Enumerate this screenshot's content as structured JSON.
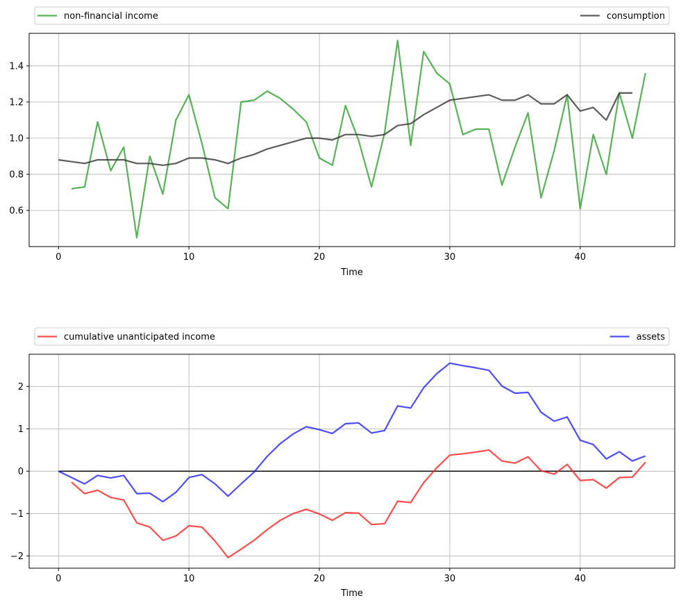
{
  "chart_data": [
    {
      "type": "line",
      "xlabel": "Time",
      "ylabel": "",
      "xlim": [
        -2.25,
        47.25
      ],
      "ylim": [
        0.4,
        1.58
      ],
      "xticks": [
        0,
        10,
        20,
        30,
        40
      ],
      "yticks": [
        0.6,
        0.8,
        1.0,
        1.2,
        1.4
      ],
      "ytick_labels": [
        "0.6",
        "0.8",
        "1.0",
        "1.2",
        "1.4"
      ],
      "grid": true,
      "legend_placement": "above plot, expanded across full width",
      "series": [
        {
          "name": "non-financial income",
          "color": "#2ca02c",
          "x_start": 1,
          "values": [
            0.72,
            0.73,
            1.09,
            0.82,
            0.95,
            0.45,
            0.9,
            0.69,
            1.1,
            1.24,
            0.97,
            0.67,
            0.61,
            1.2,
            1.21,
            1.26,
            1.22,
            1.16,
            1.09,
            0.89,
            0.85,
            1.18,
            0.99,
            0.73,
            1.03,
            1.54,
            0.96,
            1.48,
            1.36,
            1.3,
            1.02,
            1.05,
            1.05,
            0.74,
            0.95,
            1.14,
            0.67,
            0.93,
            1.24,
            0.61,
            1.02,
            0.8,
            1.25,
            1.0,
            1.36
          ]
        },
        {
          "name": "consumption",
          "color": "#333333",
          "x_start": 0,
          "values": [
            0.88,
            0.87,
            0.86,
            0.88,
            0.88,
            0.88,
            0.86,
            0.86,
            0.85,
            0.86,
            0.89,
            0.89,
            0.88,
            0.86,
            0.89,
            0.91,
            0.94,
            0.96,
            0.98,
            1.0,
            1.0,
            0.99,
            1.02,
            1.02,
            1.01,
            1.02,
            1.07,
            1.08,
            1.13,
            1.17,
            1.21,
            1.22,
            1.23,
            1.24,
            1.21,
            1.21,
            1.24,
            1.19,
            1.19,
            1.24,
            1.15,
            1.17,
            1.1,
            1.25,
            1.25
          ]
        }
      ]
    },
    {
      "type": "line",
      "xlabel": "Time",
      "ylabel": "",
      "xlim": [
        -2.25,
        47.25
      ],
      "ylim": [
        -2.29,
        2.76
      ],
      "xticks": [
        0,
        10,
        20,
        30,
        40
      ],
      "yticks": [
        -2,
        -1,
        0,
        1,
        2
      ],
      "ytick_labels": [
        "−2",
        "−1",
        "0",
        "1",
        "2"
      ],
      "grid": true,
      "legend_placement": "above plot, expanded across full width",
      "zero_line": {
        "x_from": 0,
        "x_to": 44,
        "y": 0,
        "color": "#000000"
      },
      "series": [
        {
          "name": "cumulative unanticipated income",
          "color": "#ff1f1f",
          "x_start": 1,
          "values": [
            -0.26,
            -0.53,
            -0.45,
            -0.62,
            -0.68,
            -1.22,
            -1.32,
            -1.63,
            -1.53,
            -1.29,
            -1.32,
            -1.65,
            -2.04,
            -1.84,
            -1.63,
            -1.38,
            -1.16,
            -1.0,
            -0.9,
            -1.01,
            -1.16,
            -0.98,
            -0.99,
            -1.26,
            -1.24,
            -0.71,
            -0.74,
            -0.27,
            0.08,
            0.38,
            0.41,
            0.45,
            0.5,
            0.24,
            0.19,
            0.34,
            0.01,
            -0.07,
            0.16,
            -0.22,
            -0.2,
            -0.4,
            -0.15,
            -0.14,
            0.21
          ]
        },
        {
          "name": "assets",
          "color": "#1f1fff",
          "x_start": 0,
          "values": [
            0.0,
            -0.15,
            -0.3,
            -0.1,
            -0.16,
            -0.1,
            -0.53,
            -0.52,
            -0.72,
            -0.5,
            -0.15,
            -0.08,
            -0.3,
            -0.59,
            -0.3,
            -0.02,
            0.35,
            0.65,
            0.88,
            1.05,
            0.98,
            0.89,
            1.12,
            1.14,
            0.9,
            0.96,
            1.54,
            1.49,
            1.97,
            2.3,
            2.55,
            2.49,
            2.44,
            2.38,
            2.01,
            1.84,
            1.86,
            1.39,
            1.18,
            1.28,
            0.73,
            0.63,
            0.29,
            0.46,
            0.24,
            0.36
          ]
        }
      ]
    }
  ]
}
